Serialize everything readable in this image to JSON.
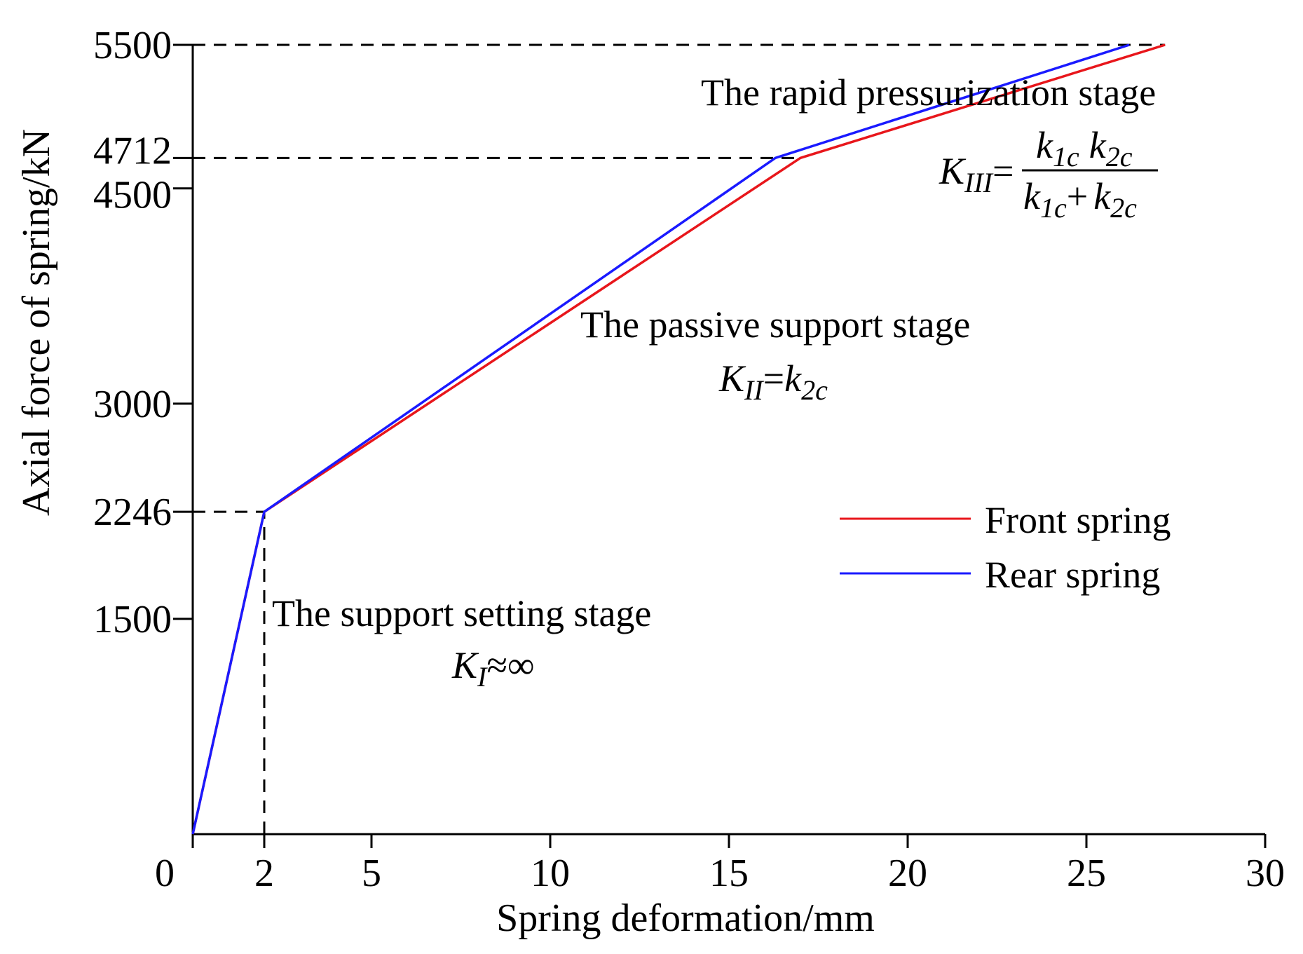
{
  "chart_data": {
    "type": "line",
    "xlabel": "Spring deformation/mm",
    "ylabel": "Axial force of spring/kN",
    "xlim": [
      0,
      30
    ],
    "ylim": [
      0,
      5500
    ],
    "x_ticks": [
      "0",
      "2",
      "5",
      "10",
      "15",
      "20",
      "25",
      "30"
    ],
    "y_ticks": [
      "1500",
      "2246",
      "3000",
      "4500",
      "4712",
      "5500"
    ],
    "grid": false,
    "legend_position": "right-middle",
    "series": [
      {
        "name": "Front spring",
        "color": "#e8161b",
        "x": [
          0,
          2,
          17,
          27.2
        ],
        "y": [
          0,
          2246,
          4712,
          5500
        ]
      },
      {
        "name": "Rear spring",
        "color": "#1a1aff",
        "x": [
          0,
          2,
          16.3,
          26.2
        ],
        "y": [
          0,
          2246,
          4712,
          5500
        ]
      }
    ],
    "reference_lines": [
      {
        "orientation": "horizontal",
        "value": 5500
      },
      {
        "orientation": "horizontal",
        "value": 4712
      },
      {
        "orientation": "horizontal",
        "value": 2246
      },
      {
        "orientation": "vertical",
        "value": 2
      }
    ],
    "annotations": {
      "stage3_title": "The rapid pressurization stage",
      "stage3_formula": {
        "lhs_symbol": "K",
        "lhs_sub": "III",
        "eq": "=",
        "num1": "k",
        "num1_sub": "1c",
        "num2": "k",
        "num2_sub": "2c",
        "den1": "k",
        "den1_sub": "1c",
        "plus": "+",
        "den2": "k",
        "den2_sub": "2c"
      },
      "stage2_title": "The passive support stage",
      "stage2_formula": {
        "symbol": "K",
        "sub": "II",
        "eq": "=",
        "rhs": "k",
        "rhs_sub": "2c"
      },
      "stage1_title": "The support setting stage",
      "stage1_formula": {
        "symbol": "K",
        "sub": "I",
        "rhs": "≈∞"
      }
    }
  }
}
